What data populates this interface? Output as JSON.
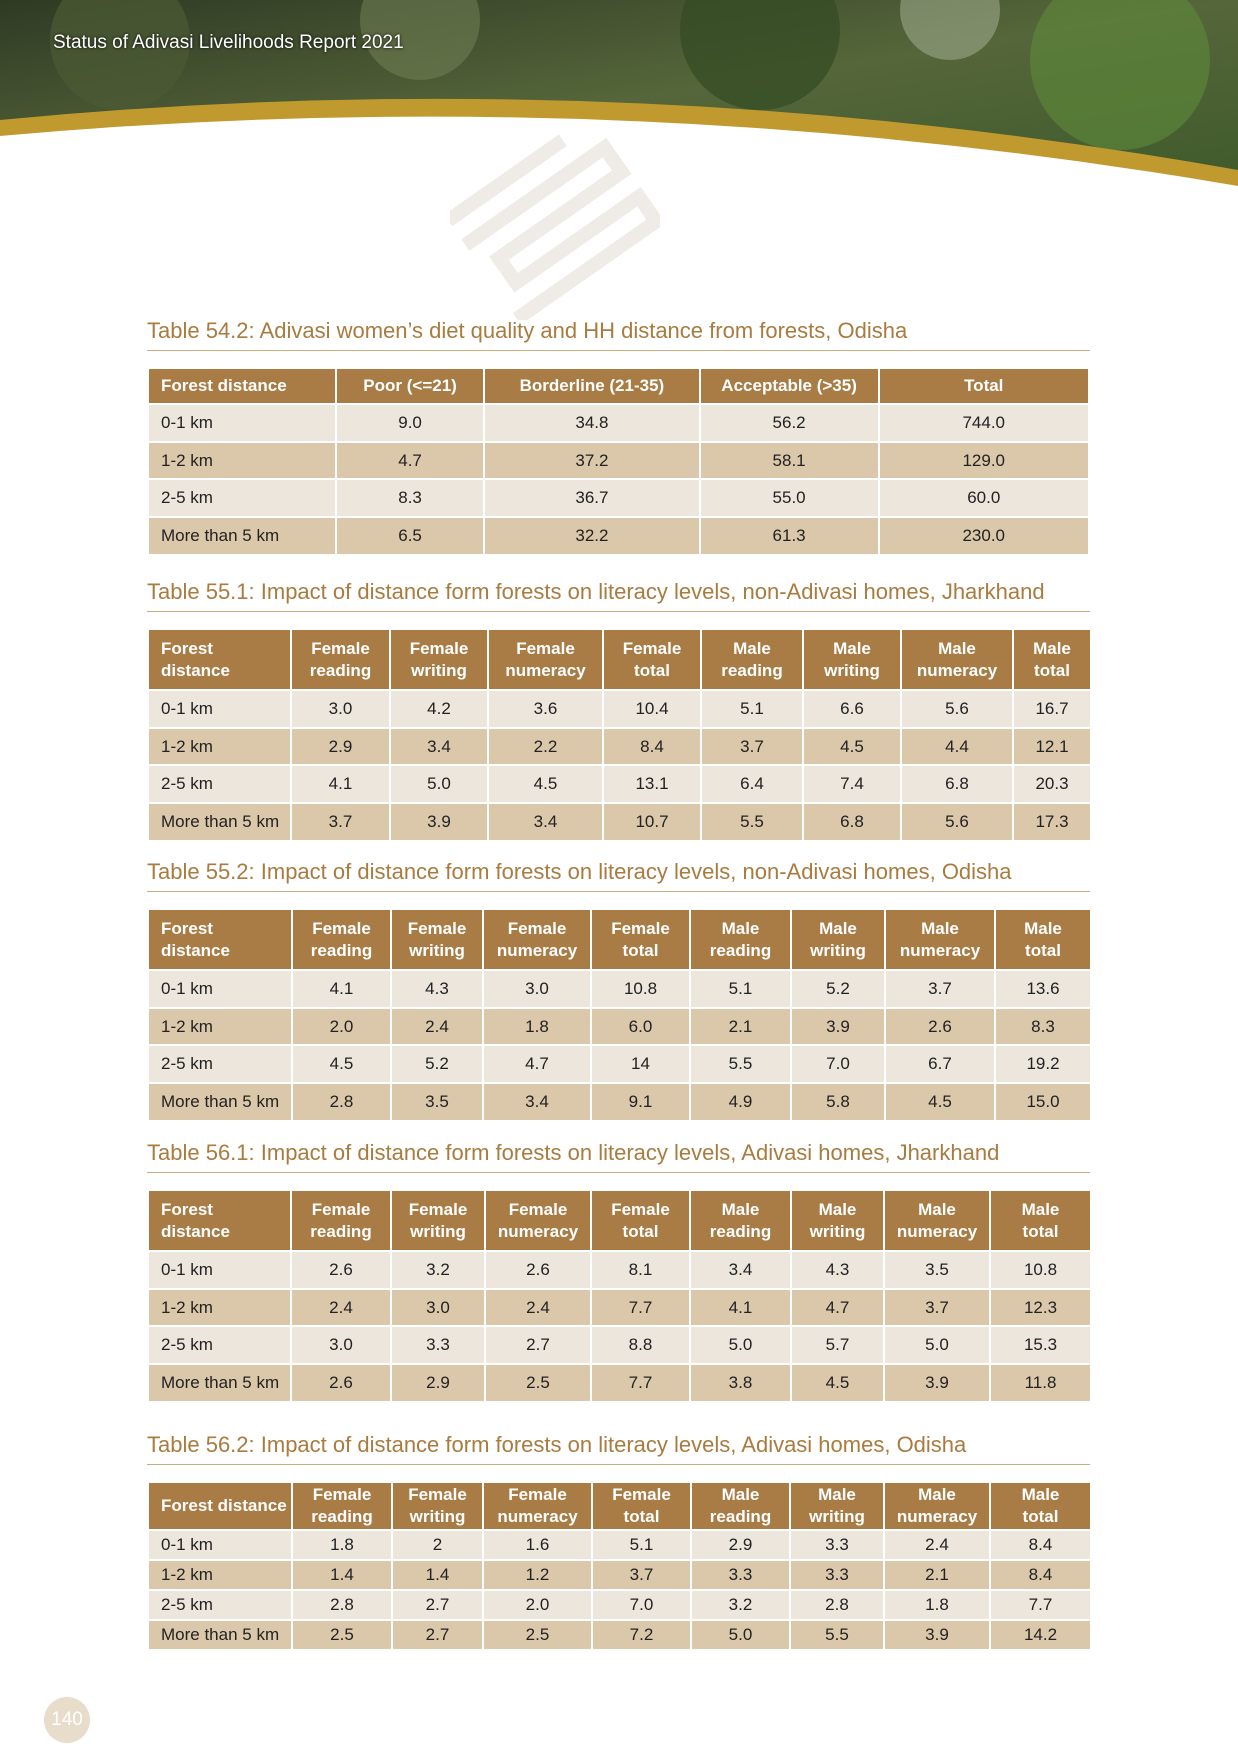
{
  "header": {
    "title": "Status of Adivasi Livelihoods Report 2021"
  },
  "tables": [
    {
      "title": "Table 54.2: Adivasi women’s diet quality and HH distance from forests, Odisha",
      "columns": [
        "Forest distance",
        "Poor (<=21)",
        "Borderline (21-35)",
        "Acceptable (>35)",
        "Total"
      ],
      "rows": [
        [
          "0-1 km",
          "9.0",
          "34.8",
          "56.2",
          "744.0"
        ],
        [
          "1-2 km",
          "4.7",
          "37.2",
          "58.1",
          "129.0"
        ],
        [
          "2-5 km",
          "8.3",
          "36.7",
          "55.0",
          "60.0"
        ],
        [
          "More than 5 km",
          "6.5",
          "32.2",
          "61.3",
          "230.0"
        ]
      ]
    },
    {
      "title": "Table 55.1: Impact of distance form forests on literacy levels, non-Adivasi homes, Jharkhand",
      "columns": [
        "Forest distance",
        "Female reading",
        "Female writing",
        "Female numeracy",
        "Female total",
        "Male reading",
        "Male writing",
        "Male numeracy",
        "Male total"
      ],
      "rows": [
        [
          "0-1 km",
          "3.0",
          "4.2",
          "3.6",
          "10.4",
          "5.1",
          "6.6",
          "5.6",
          "16.7"
        ],
        [
          "1-2 km",
          "2.9",
          "3.4",
          "2.2",
          "8.4",
          "3.7",
          "4.5",
          "4.4",
          "12.1"
        ],
        [
          "2-5 km",
          "4.1",
          "5.0",
          "4.5",
          "13.1",
          "6.4",
          "7.4",
          "6.8",
          "20.3"
        ],
        [
          "More than 5 km",
          "3.7",
          "3.9",
          "3.4",
          "10.7",
          "5.5",
          "6.8",
          "5.6",
          "17.3"
        ]
      ]
    },
    {
      "title": "Table 55.2: Impact of distance form forests on literacy levels, non-Adivasi homes,  Odisha",
      "columns": [
        "Forest distance",
        "Female reading",
        "Female writing",
        "Female numeracy",
        "Female total",
        "Male reading",
        "Male writing",
        "Male numeracy",
        "Male total"
      ],
      "rows": [
        [
          "0-1 km",
          "4.1",
          "4.3",
          "3.0",
          "10.8",
          "5.1",
          "5.2",
          "3.7",
          "13.6"
        ],
        [
          "1-2 km",
          "2.0",
          "2.4",
          "1.8",
          "6.0",
          "2.1",
          "3.9",
          "2.6",
          "8.3"
        ],
        [
          "2-5 km",
          "4.5",
          "5.2",
          "4.7",
          "14",
          "5.5",
          "7.0",
          "6.7",
          "19.2"
        ],
        [
          "More than 5 km",
          "2.8",
          "3.5",
          "3.4",
          "9.1",
          "4.9",
          "5.8",
          "4.5",
          "15.0"
        ]
      ]
    },
    {
      "title": "Table 56.1: Impact of distance form forests on literacy levels, Adivasi homes, Jharkhand",
      "columns": [
        "Forest distance",
        "Female reading",
        "Female writing",
        "Female numeracy",
        "Female total",
        "Male reading",
        "Male writing",
        "Male numeracy",
        "Male total"
      ],
      "rows": [
        [
          "0-1 km",
          "2.6",
          "3.2",
          "2.6",
          "8.1",
          "3.4",
          "4.3",
          "3.5",
          "10.8"
        ],
        [
          "1-2 km",
          "2.4",
          "3.0",
          "2.4",
          "7.7",
          "4.1",
          "4.7",
          "3.7",
          "12.3"
        ],
        [
          "2-5 km",
          "3.0",
          "3.3",
          "2.7",
          "8.8",
          "5.0",
          "5.7",
          "5.0",
          "15.3"
        ],
        [
          "More than 5 km",
          "2.6",
          "2.9",
          "2.5",
          "7.7",
          "3.8",
          "4.5",
          "3.9",
          "11.8"
        ]
      ]
    },
    {
      "title": "Table 56.2: Impact of distance form forests on literacy levels, Adivasi homes, Odisha",
      "columns": [
        "Forest distance",
        "Female reading",
        "Female writing",
        "Female numeracy",
        "Female total",
        "Male reading",
        "Male writing",
        "Male numeracy",
        "Male total"
      ],
      "rows": [
        [
          "0-1 km",
          "1.8",
          "2",
          "1.6",
          "5.1",
          "2.9",
          "3.3",
          "2.4",
          "8.4"
        ],
        [
          "1-2 km",
          "1.4",
          "1.4",
          "1.2",
          "3.7",
          "3.3",
          "3.3",
          "2.1",
          "8.4"
        ],
        [
          "2-5 km",
          "2.8",
          "2.7",
          "2.0",
          "7.0",
          "3.2",
          "2.8",
          "1.8",
          "7.7"
        ],
        [
          "More than 5 km",
          "2.5",
          "2.7",
          "2.5",
          "7.2",
          "5.0",
          "5.5",
          "3.9",
          "14.2"
        ]
      ]
    }
  ],
  "footer": {
    "page_number": "140"
  }
}
